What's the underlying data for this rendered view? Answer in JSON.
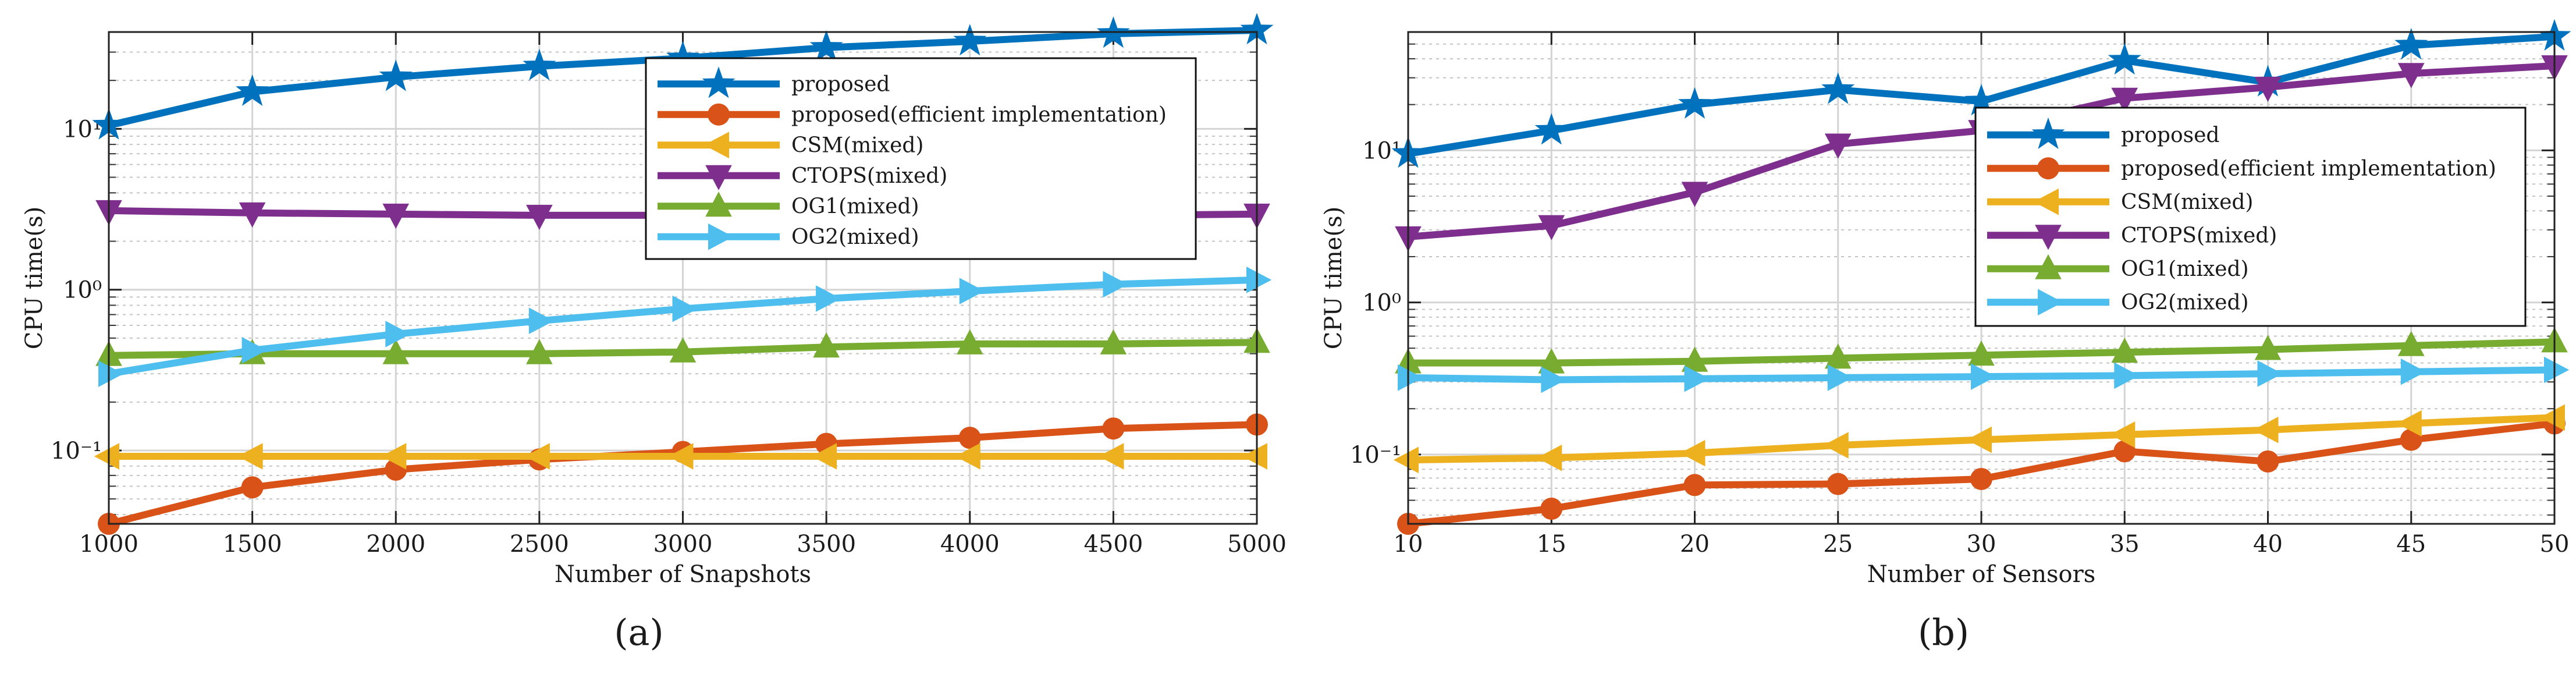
{
  "chart_data": [
    {
      "type": "line",
      "panel_label": "a",
      "xlabel": "Number of Snapshots",
      "ylabel": "CPU time(s)",
      "yscale": "log",
      "xlim": [
        1000,
        5000
      ],
      "ylim": [
        0.035,
        40
      ],
      "grid": true,
      "legend_position": "top-right",
      "x": [
        1000,
        1500,
        2000,
        2500,
        3000,
        3500,
        4000,
        4500,
        5000
      ],
      "x_ticks": [
        "1000",
        "1500",
        "2000",
        "2500",
        "3000",
        "3500",
        "4000",
        "4500",
        "5000"
      ],
      "y_ticks": [
        {
          "value": 10,
          "label": "10¹"
        },
        {
          "value": 1,
          "label": "10⁰"
        },
        {
          "value": 0.1,
          "label": "10⁻¹"
        }
      ],
      "series": [
        {
          "name": "proposed",
          "color": "#0072BD",
          "marker": "star",
          "values": [
            10.5,
            17,
            21,
            24.5,
            27.5,
            32,
            35,
            39,
            41
          ]
        },
        {
          "name": "proposed(efficient implementation)",
          "color": "#D95319",
          "marker": "circle",
          "values": [
            0.035,
            0.059,
            0.076,
            0.088,
            0.098,
            0.11,
            0.12,
            0.137,
            0.145
          ]
        },
        {
          "name": "CSM(mixed)",
          "color": "#EDB120",
          "marker": "triangle-left",
          "values": [
            0.092,
            0.092,
            0.092,
            0.092,
            0.092,
            0.092,
            0.092,
            0.092,
            0.092
          ]
        },
        {
          "name": "CTOPS(mixed)",
          "color": "#7E2F8E",
          "marker": "triangle-down",
          "values": [
            3.1,
            3.0,
            2.95,
            2.9,
            2.9,
            2.9,
            2.9,
            2.9,
            2.95
          ]
        },
        {
          "name": "OG1(mixed)",
          "color": "#77AC30",
          "marker": "triangle-up",
          "values": [
            0.39,
            0.4,
            0.4,
            0.4,
            0.41,
            0.44,
            0.46,
            0.46,
            0.47
          ]
        },
        {
          "name": "OG2(mixed)",
          "color": "#4DBEEE",
          "marker": "triangle-right",
          "values": [
            0.3,
            0.42,
            0.53,
            0.64,
            0.76,
            0.88,
            0.98,
            1.08,
            1.15
          ]
        }
      ]
    },
    {
      "type": "line",
      "panel_label": "b",
      "xlabel": "Number of Sensors",
      "ylabel": "CPU time(s)",
      "yscale": "log",
      "xlim": [
        10,
        50
      ],
      "ylim": [
        0.035,
        60
      ],
      "grid": true,
      "legend_position": "center-right",
      "x": [
        10,
        15,
        20,
        25,
        30,
        35,
        40,
        45,
        50
      ],
      "x_ticks": [
        "10",
        "15",
        "20",
        "25",
        "30",
        "35",
        "40",
        "45",
        "50"
      ],
      "y_ticks": [
        {
          "value": 10,
          "label": "10¹"
        },
        {
          "value": 1,
          "label": "10⁰"
        },
        {
          "value": 0.1,
          "label": "10⁻¹"
        }
      ],
      "series": [
        {
          "name": "proposed",
          "color": "#0072BD",
          "marker": "star",
          "values": [
            9.5,
            13.5,
            20,
            25,
            21,
            39,
            28,
            49,
            56
          ]
        },
        {
          "name": "proposed(efficient implementation)",
          "color": "#D95319",
          "marker": "circle",
          "values": [
            0.035,
            0.044,
            0.063,
            0.064,
            0.069,
            0.105,
            0.09,
            0.125,
            0.16
          ]
        },
        {
          "name": "CSM(mixed)",
          "color": "#EDB120",
          "marker": "triangle-left",
          "values": [
            0.092,
            0.095,
            0.102,
            0.115,
            0.125,
            0.135,
            0.145,
            0.16,
            0.175
          ]
        },
        {
          "name": "CTOPS(mixed)",
          "color": "#7E2F8E",
          "marker": "triangle-down",
          "values": [
            2.7,
            3.2,
            5.3,
            11,
            13.5,
            22,
            26,
            32,
            36
          ]
        },
        {
          "name": "OG1(mixed)",
          "color": "#77AC30",
          "marker": "triangle-up",
          "values": [
            0.4,
            0.4,
            0.41,
            0.43,
            0.45,
            0.47,
            0.49,
            0.52,
            0.55
          ]
        },
        {
          "name": "OG2(mixed)",
          "color": "#4DBEEE",
          "marker": "triangle-right",
          "values": [
            0.32,
            0.31,
            0.315,
            0.32,
            0.325,
            0.33,
            0.34,
            0.35,
            0.36
          ]
        }
      ]
    }
  ],
  "captions": [
    "(a)",
    "(b)"
  ]
}
